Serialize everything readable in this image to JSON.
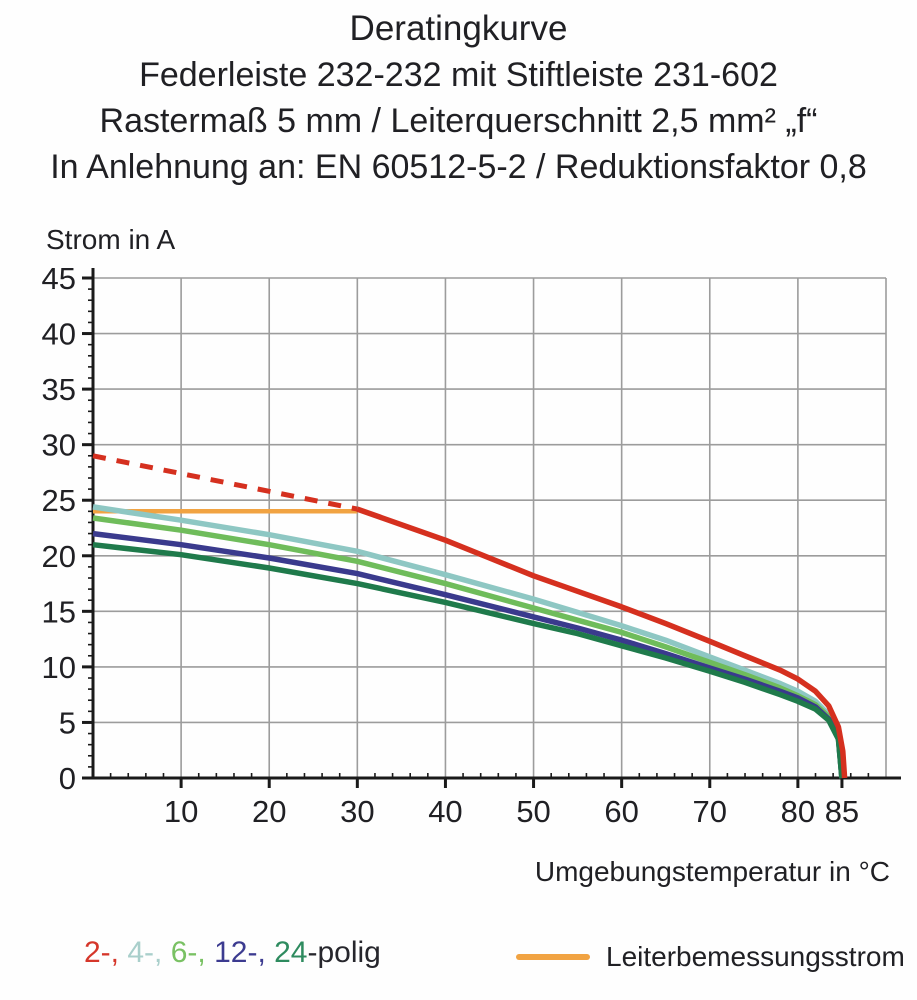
{
  "header": {
    "title": "Deratingkurve",
    "subtitle1": "Federleiste 232-232 mit Stiftleiste 231-602",
    "subtitle2": "Rastermaß 5 mm / Leiterquerschnitt 2,5 mm² „f“",
    "subtitle3": "In Anlehnung an: EN 60512-5-2 / Reduktionsfaktor 0,8"
  },
  "chart_data": {
    "type": "line",
    "title": "Deratingkurve",
    "xlabel": "Umgebungstemperatur in °C",
    "ylabel": "Strom in A",
    "xlim": [
      0,
      90
    ],
    "ylim": [
      0,
      45
    ],
    "grid": true,
    "grid_color": "#9c9c9c",
    "axis_color": "#1a1a1a",
    "tick_label_color": "#202024",
    "x_major_ticks": [
      10,
      20,
      30,
      40,
      50,
      60,
      70,
      80,
      85
    ],
    "x_grid_lines": [
      10,
      20,
      30,
      40,
      50,
      60,
      70,
      80
    ],
    "x_minor_step": 2,
    "y_major_ticks": [
      0,
      5,
      10,
      15,
      20,
      25,
      30,
      35,
      40,
      45
    ],
    "y_grid_lines": [
      5,
      10,
      15,
      20,
      25,
      30,
      35,
      40,
      45
    ],
    "y_minor_step": 1,
    "series": [
      {
        "name": "Leiterbemessungsstrom",
        "color": "#f1a342",
        "style": "solid",
        "width": 4.5,
        "points": [
          [
            0,
            24
          ],
          [
            30,
            24
          ]
        ]
      },
      {
        "name": "4-polig",
        "color": "#8ec7c3",
        "style": "solid",
        "width": 5.5,
        "points": [
          [
            0,
            24.4
          ],
          [
            10,
            23.2
          ],
          [
            20,
            21.9
          ],
          [
            30,
            20.4
          ],
          [
            40,
            18.3
          ],
          [
            50,
            16.1
          ],
          [
            55,
            14.9
          ],
          [
            60,
            13.7
          ],
          [
            65,
            12.4
          ],
          [
            70,
            10.9
          ],
          [
            74,
            9.7
          ],
          [
            78,
            8.5
          ],
          [
            80,
            7.8
          ],
          [
            82,
            6.9
          ],
          [
            83.5,
            5.7
          ],
          [
            84.6,
            3.8
          ],
          [
            85,
            0
          ]
        ]
      },
      {
        "name": "6-polig",
        "color": "#6fbc5b",
        "style": "solid",
        "width": 5.5,
        "points": [
          [
            0,
            23.4
          ],
          [
            10,
            22.3
          ],
          [
            20,
            21.0
          ],
          [
            30,
            19.5
          ],
          [
            40,
            17.5
          ],
          [
            50,
            15.3
          ],
          [
            55,
            14.2
          ],
          [
            60,
            13.1
          ],
          [
            65,
            11.8
          ],
          [
            70,
            10.4
          ],
          [
            74,
            9.3
          ],
          [
            78,
            8.1
          ],
          [
            80,
            7.4
          ],
          [
            82,
            6.6
          ],
          [
            83.5,
            5.5
          ],
          [
            84.6,
            3.7
          ],
          [
            85,
            0
          ]
        ]
      },
      {
        "name": "12-polig",
        "color": "#3a3a8d",
        "style": "solid",
        "width": 5.5,
        "points": [
          [
            0,
            22.0
          ],
          [
            10,
            21.0
          ],
          [
            20,
            19.8
          ],
          [
            30,
            18.4
          ],
          [
            40,
            16.5
          ],
          [
            50,
            14.5
          ],
          [
            55,
            13.5
          ],
          [
            60,
            12.4
          ],
          [
            65,
            11.2
          ],
          [
            70,
            9.9
          ],
          [
            74,
            8.9
          ],
          [
            78,
            7.8
          ],
          [
            80,
            7.2
          ],
          [
            82,
            6.4
          ],
          [
            83.5,
            5.3
          ],
          [
            84.6,
            3.6
          ],
          [
            85,
            0
          ]
        ]
      },
      {
        "name": "24-polig",
        "color": "#1f7a4b",
        "style": "solid",
        "width": 5.5,
        "points": [
          [
            0,
            21.0
          ],
          [
            10,
            20.1
          ],
          [
            20,
            18.9
          ],
          [
            30,
            17.5
          ],
          [
            40,
            15.8
          ],
          [
            50,
            13.9
          ],
          [
            55,
            13.0
          ],
          [
            60,
            11.9
          ],
          [
            65,
            10.8
          ],
          [
            70,
            9.6
          ],
          [
            74,
            8.6
          ],
          [
            78,
            7.5
          ],
          [
            80,
            6.9
          ],
          [
            82,
            6.2
          ],
          [
            83.5,
            5.2
          ],
          [
            84.6,
            3.5
          ],
          [
            85,
            0
          ]
        ]
      },
      {
        "name": "2-polig-dashed",
        "color": "#d5301f",
        "style": "dashed",
        "width": 5,
        "points": [
          [
            0,
            29.0
          ],
          [
            30,
            24.2
          ]
        ]
      },
      {
        "name": "2-polig",
        "color": "#d5301f",
        "style": "solid",
        "width": 5.5,
        "points": [
          [
            30,
            24.2
          ],
          [
            35,
            22.8
          ],
          [
            40,
            21.4
          ],
          [
            45,
            19.8
          ],
          [
            50,
            18.2
          ],
          [
            55,
            16.8
          ],
          [
            60,
            15.4
          ],
          [
            65,
            13.9
          ],
          [
            70,
            12.3
          ],
          [
            74,
            11.0
          ],
          [
            78,
            9.7
          ],
          [
            80,
            8.9
          ],
          [
            82,
            7.8
          ],
          [
            83.5,
            6.5
          ],
          [
            84.6,
            4.6
          ],
          [
            85.1,
            2.4
          ],
          [
            85.3,
            0
          ]
        ]
      }
    ]
  },
  "legend": {
    "pole_parts": [
      {
        "label": "2-, ",
        "color": "#d5362a"
      },
      {
        "label": "4-, ",
        "color": "#a9cfcb"
      },
      {
        "label": "6-, ",
        "color": "#79c163"
      },
      {
        "label": "12-, ",
        "color": "#3c3b90"
      },
      {
        "label": "24",
        "color": "#2e8b5f"
      },
      {
        "label": "-polig",
        "color": "#26262c"
      }
    ],
    "rated_current_label": "Leiterbemessungsstrom",
    "rated_current_color": "#f1a342"
  }
}
